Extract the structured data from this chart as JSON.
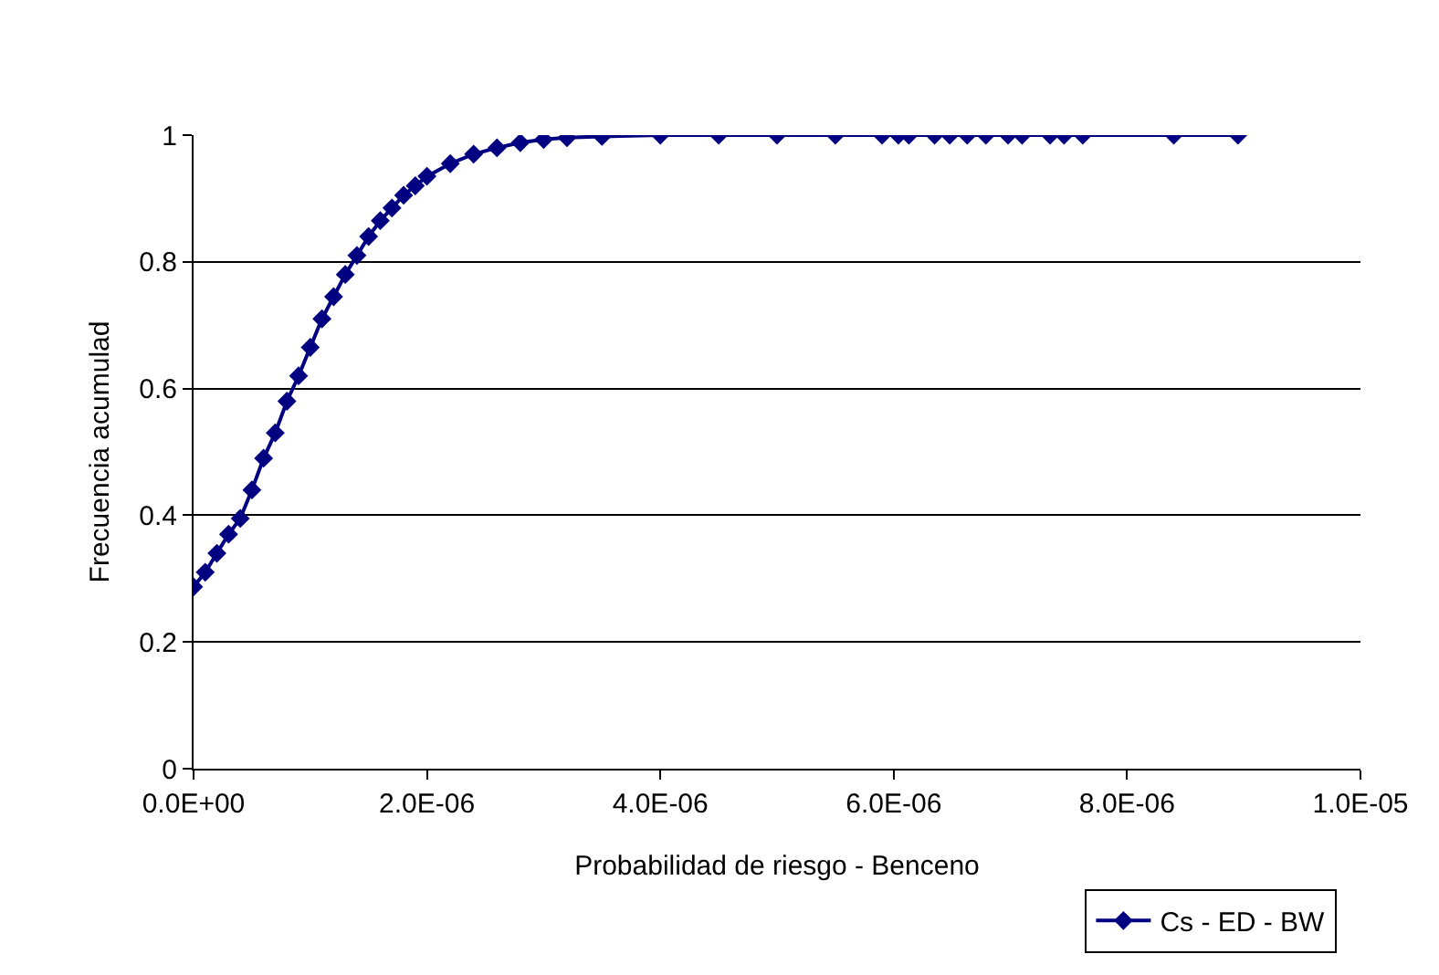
{
  "chart_data": {
    "type": "line",
    "xlabel": "Probabilidad de riesgo - Benceno",
    "ylabel": "Frecuencia acumulad",
    "xlim": [
      0,
      1e-05
    ],
    "xticks": [
      {
        "value": 0,
        "label": "0.0E+00"
      },
      {
        "value": 2e-06,
        "label": "2.0E-06"
      },
      {
        "value": 4e-06,
        "label": "4.0E-06"
      },
      {
        "value": 6e-06,
        "label": "6.0E-06"
      },
      {
        "value": 8e-06,
        "label": "8.0E-06"
      },
      {
        "value": 1e-05,
        "label": "1.0E-05"
      }
    ],
    "ylim": [
      0,
      1
    ],
    "yticks": [
      0,
      0.2,
      0.4,
      0.6,
      0.8,
      1
    ],
    "grid": "y",
    "legend": "bottom right",
    "marker": "diamond",
    "line_style": "solid",
    "x": [
      0,
      1e-07,
      2e-07,
      3e-07,
      4e-07,
      5e-07,
      6e-07,
      7e-07,
      8e-07,
      9e-07,
      1e-06,
      1.1e-06,
      1.2e-06,
      1.3e-06,
      1.4e-06,
      1.5e-06,
      1.6e-06,
      1.7e-06,
      1.8e-06,
      1.9e-06,
      2e-06,
      2.2e-06,
      2.4e-06,
      2.6e-06,
      2.8e-06,
      3e-06,
      3.2e-06,
      3.5e-06,
      4e-06,
      4.5e-06,
      5e-06,
      5.5e-06,
      5.9e-06,
      6.04e-06,
      6.13e-06,
      6.35e-06,
      6.48e-06,
      6.63e-06,
      6.79e-06,
      6.98e-06,
      7.1e-06,
      7.34e-06,
      7.46e-06,
      7.62e-06,
      8.4e-06,
      8.95e-06
    ],
    "series": [
      {
        "name": "Cs - ED - BW",
        "color": "#000080",
        "values": [
          0.287,
          0.31,
          0.34,
          0.37,
          0.395,
          0.44,
          0.49,
          0.53,
          0.58,
          0.62,
          0.665,
          0.71,
          0.745,
          0.78,
          0.81,
          0.84,
          0.865,
          0.885,
          0.905,
          0.92,
          0.935,
          0.955,
          0.97,
          0.98,
          0.988,
          0.993,
          0.996,
          0.998,
          1,
          1,
          1,
          1,
          1,
          1,
          1,
          1,
          1,
          1,
          1,
          1,
          1,
          1,
          1,
          1,
          1,
          1
        ]
      }
    ]
  }
}
